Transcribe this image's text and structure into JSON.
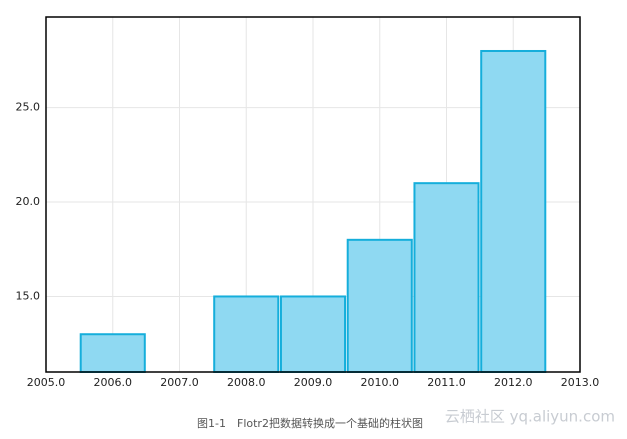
{
  "chart_data": {
    "type": "bar",
    "x": [
      2006,
      2007,
      2008,
      2009,
      2010,
      2011,
      2012
    ],
    "values": [
      13,
      null,
      15,
      15,
      18,
      21,
      28
    ],
    "color": "#8fd9f2",
    "edge_color": "#15aedb",
    "xlim": [
      2005,
      2013
    ],
    "xticks": [
      {
        "value": 2005,
        "label": "2005.0"
      },
      {
        "value": 2006,
        "label": "2006.0"
      },
      {
        "value": 2007,
        "label": "2007.0"
      },
      {
        "value": 2008,
        "label": "2008.0"
      },
      {
        "value": 2009,
        "label": "2009.0"
      },
      {
        "value": 2010,
        "label": "2010.0"
      },
      {
        "value": 2011,
        "label": "2011.0"
      },
      {
        "value": 2012,
        "label": "2012.0"
      },
      {
        "value": 2013,
        "label": "2013.0"
      }
    ],
    "ylim": [
      11,
      29.8
    ],
    "yticks": [
      {
        "value": 15,
        "label": "15.0"
      },
      {
        "value": 20,
        "label": "20.0"
      },
      {
        "value": 25,
        "label": "25.0"
      }
    ],
    "grid": true,
    "caption": "图1-1　Flotr2把数据转换成一个基础的柱状图",
    "watermark": "云栖社区 yq.aliyun.com"
  }
}
